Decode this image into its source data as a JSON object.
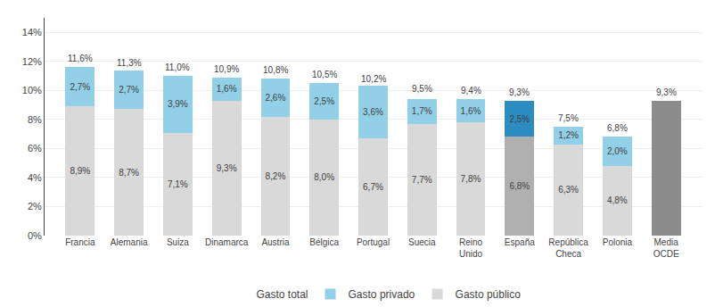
{
  "chart_data": {
    "type": "bar",
    "stacked": true,
    "categories": [
      "Francia",
      "Alemania",
      "Suiza",
      "Dinamarca",
      "Austria",
      "Bélgica",
      "Portugal",
      "Suecia",
      "Reino\nUnido",
      "España",
      "República\nCheca",
      "Polonia",
      "Media\nOCDE"
    ],
    "series": [
      {
        "name": "Gasto público",
        "values": [
          8.9,
          8.7,
          7.1,
          9.3,
          8.2,
          8.0,
          6.7,
          7.7,
          7.8,
          6.8,
          6.3,
          4.8,
          9.3
        ],
        "value_labels": [
          "8,9%",
          "8,7%",
          "7,1%",
          "9,3%",
          "8,2%",
          "8,0%",
          "6,7%",
          "7,7%",
          "7,8%",
          "6,8%",
          "6,3%",
          "4,8%",
          null
        ],
        "colors": [
          "#d9d9d9",
          "#d9d9d9",
          "#d9d9d9",
          "#d9d9d9",
          "#d9d9d9",
          "#d9d9d9",
          "#d9d9d9",
          "#d9d9d9",
          "#d9d9d9",
          "#b0b0b0",
          "#d9d9d9",
          "#d9d9d9",
          "#8c8c8c"
        ]
      },
      {
        "name": "Gasto privado",
        "values": [
          2.7,
          2.7,
          3.9,
          1.6,
          2.6,
          2.5,
          3.6,
          1.7,
          1.6,
          2.5,
          1.2,
          2.0,
          0.0
        ],
        "value_labels": [
          "2,7%",
          "2,7%",
          "3,9%",
          "1,6%",
          "2,6%",
          "2,5%",
          "3,6%",
          "1,7%",
          "1,6%",
          "2,5%",
          "1,2%",
          "2,0%",
          null
        ],
        "colors": [
          "#92d0e8",
          "#92d0e8",
          "#92d0e8",
          "#92d0e8",
          "#92d0e8",
          "#92d0e8",
          "#92d0e8",
          "#92d0e8",
          "#92d0e8",
          "#2b8cbf",
          "#92d0e8",
          "#92d0e8",
          "#92d0e8"
        ]
      },
      {
        "name": "Gasto total",
        "type": "text",
        "values": [
          11.6,
          11.3,
          11.0,
          10.9,
          10.8,
          10.5,
          10.2,
          9.5,
          9.4,
          9.3,
          7.5,
          6.8,
          9.3
        ],
        "value_labels": [
          "11,6%",
          "11,3%",
          "11,0%",
          "10,9%",
          "10,8%",
          "10,5%",
          "10,2%",
          "9,5%",
          "9,4%",
          "9,3%",
          "7,5%",
          "6,8%",
          "9,3%"
        ]
      }
    ],
    "ylim": [
      0,
      15
    ],
    "yticks": [
      {
        "value": 0,
        "label": "0%"
      },
      {
        "value": 2,
        "label": "2%"
      },
      {
        "value": 4,
        "label": "4%"
      },
      {
        "value": 6,
        "label": "6%"
      },
      {
        "value": 8,
        "label": "8%"
      },
      {
        "value": 10,
        "label": "10%"
      },
      {
        "value": 12,
        "label": "12%"
      },
      {
        "value": 14,
        "label": "14%"
      }
    ],
    "grid": true,
    "data_labels": true,
    "legend": "bottom"
  }
}
